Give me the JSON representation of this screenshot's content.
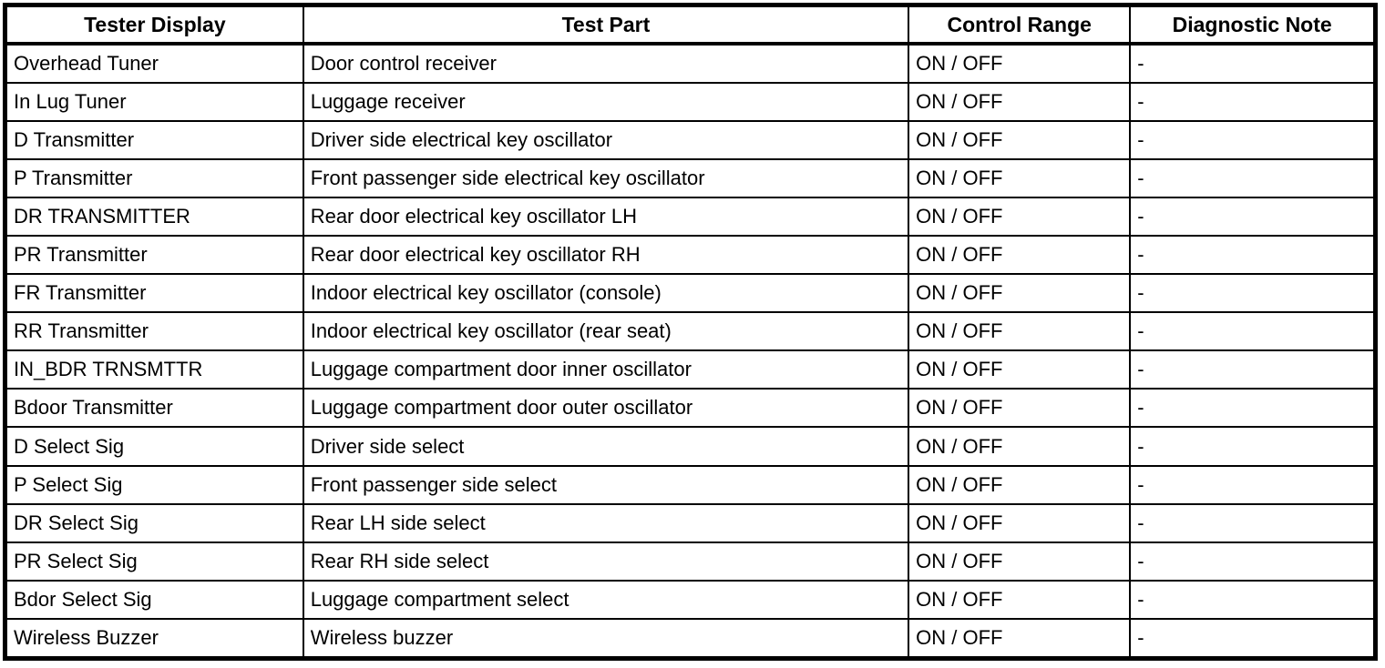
{
  "table": {
    "headers": [
      "Tester Display",
      "Test Part",
      "Control Range",
      "Diagnostic Note"
    ],
    "column_keys": [
      "tester-display",
      "test-part",
      "control-range",
      "diagnostic-note"
    ],
    "rows": [
      [
        "Overhead Tuner",
        "Door control receiver",
        "ON / OFF",
        "-"
      ],
      [
        "In Lug Tuner",
        "Luggage receiver",
        "ON / OFF",
        "-"
      ],
      [
        "D Transmitter",
        "Driver side electrical key oscillator",
        "ON / OFF",
        "-"
      ],
      [
        "P Transmitter",
        "Front passenger side electrical key oscillator",
        "ON / OFF",
        "-"
      ],
      [
        "DR TRANSMITTER",
        "Rear door electrical key oscillator LH",
        "ON / OFF",
        "-"
      ],
      [
        "PR Transmitter",
        "Rear door electrical key oscillator RH",
        "ON / OFF",
        "-"
      ],
      [
        "FR Transmitter",
        "Indoor electrical key oscillator (console)",
        "ON / OFF",
        "-"
      ],
      [
        "RR Transmitter",
        "Indoor electrical key oscillator (rear seat)",
        "ON / OFF",
        "-"
      ],
      [
        "IN_BDR TRNSMTTR",
        "Luggage compartment door inner oscillator",
        "ON / OFF",
        "-"
      ],
      [
        "Bdoor Transmitter",
        "Luggage compartment door outer oscillator",
        "ON / OFF",
        "-"
      ],
      [
        "D Select Sig",
        "Driver side select",
        "ON / OFF",
        "-"
      ],
      [
        "P Select Sig",
        "Front passenger side select",
        "ON / OFF",
        "-"
      ],
      [
        "DR Select Sig",
        "Rear LH side select",
        "ON / OFF",
        "-"
      ],
      [
        "PR Select Sig",
        "Rear RH side select",
        "ON / OFF",
        "-"
      ],
      [
        "Bdor Select Sig",
        "Luggage compartment select",
        "ON / OFF",
        "-"
      ],
      [
        "Wireless Buzzer",
        "Wireless buzzer",
        "ON / OFF",
        "-"
      ]
    ],
    "colors": {
      "border": "#000000",
      "text": "#000000",
      "background": "#ffffff"
    }
  }
}
